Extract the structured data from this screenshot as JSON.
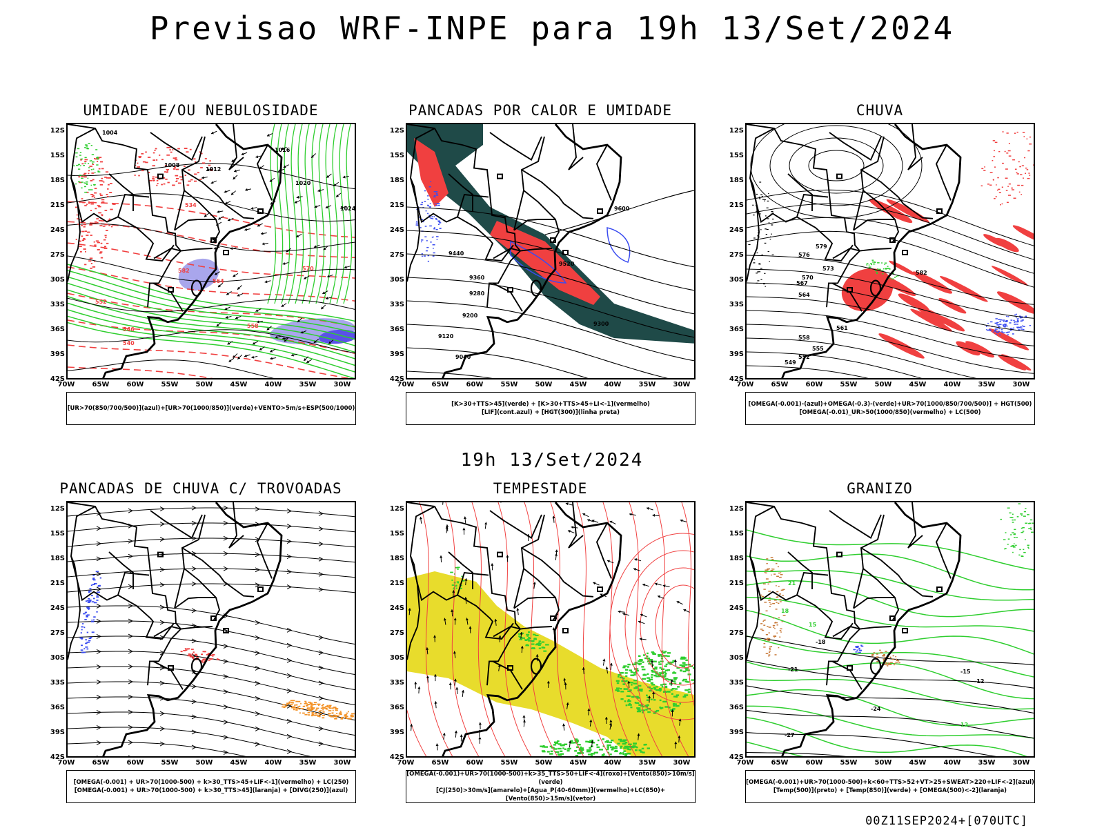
{
  "title": "Previsao WRF-INPE  para 19h 13/Set/2024",
  "mid_title": "19h 13/Set/2024",
  "footer": "00Z11SEP2024+[070UTC]",
  "axes": {
    "lat_labels": [
      "12S",
      "15S",
      "18S",
      "21S",
      "24S",
      "27S",
      "30S",
      "33S",
      "36S",
      "39S",
      "42S"
    ],
    "lon_labels": [
      "70W",
      "65W",
      "60W",
      "55W",
      "50W",
      "45W",
      "40W",
      "35W",
      "30W"
    ]
  },
  "colors": {
    "rh_blue": "#a9a6ec",
    "green": "#2fce2f",
    "red": "#f04040",
    "darkteal": "#1f4a48",
    "blue": "#3a4cf0",
    "yellow": "#e8dc2c",
    "orange": "#f39227",
    "brown": "#c87a3a"
  },
  "panels": [
    {
      "title": "UMIDADE E/OU NEBULOSIDADE",
      "legend": [
        "[UR>70(850/700/500)](azul)+[UR>70(1000/850)](verde)+VENTO>5m/s+ESP(500/1000)"
      ],
      "labels": [
        "1004",
        "1008",
        "1012",
        "1016",
        "1020",
        "1024",
        "570",
        "564",
        "558",
        "552",
        "546",
        "540",
        "534",
        "582"
      ]
    },
    {
      "title": "PANCADAS POR CALOR E UMIDADE",
      "legend": [
        "[K>30+TTS>45](verde) + [K>30+TTS>45+LI<-1](vermelho)",
        "[LIF](cont.azul) + [HGT(300)](linha preta)"
      ],
      "labels": [
        "9600",
        "9520",
        "9440",
        "9360",
        "9280",
        "9200",
        "9120",
        "9040",
        "9300"
      ]
    },
    {
      "title": "CHUVA",
      "legend": [
        "[OMEGA(-0.001)-(azul)+OMEGA(-0.3)-(verde)+UR>70(1000/850/700/500)] + HGT(500)",
        "[OMEGA(-0.01)_UR>50(1000/850)(vermelho) + LC(500)"
      ],
      "labels": [
        "579",
        "576",
        "573",
        "570",
        "567",
        "564",
        "561",
        "558",
        "555",
        "552",
        "549",
        "582"
      ]
    },
    {
      "title": "PANCADAS DE CHUVA C/ TROVOADAS",
      "legend": [
        "[OMEGA(-0.001) + UR>70(1000-500) + k>30_TTS>45+LIF<-1](vermelho) + LC(250)",
        "[OMEGA(-0.001) + UR>70(1000-500) + k>30_TTS>45](laranja) + [DIVG(250)](azul)"
      ],
      "labels": []
    },
    {
      "title": "TEMPESTADE",
      "legend": [
        "[OMEGA(-0.001)+UR>70(1000-500)+k>35_TTS>50+LIF<-4](roxo)+[Vento(850)>10m/s](verde)",
        "[CJ(250)>30m/s](amarelo)+[Agua_P(40-60mm)](vermelho)+LC(850)+[Vento(850)>15m/s](vetor)"
      ],
      "labels": []
    },
    {
      "title": "GRANIZO",
      "legend": [
        "[OMEGA(-0.001)+UR>70(1000-500)+k<60+TTS>52+VT>25+SWEAT>220+LIF<-2](azul)",
        "[Temp(500)](preto) + [Temp(850)](verde) + [OMEGA(500)<-2](laranja)"
      ],
      "labels": [
        "-21",
        "-18",
        "-15",
        "-12",
        "-24",
        "-27",
        "12",
        "15",
        "18",
        "21"
      ]
    }
  ]
}
